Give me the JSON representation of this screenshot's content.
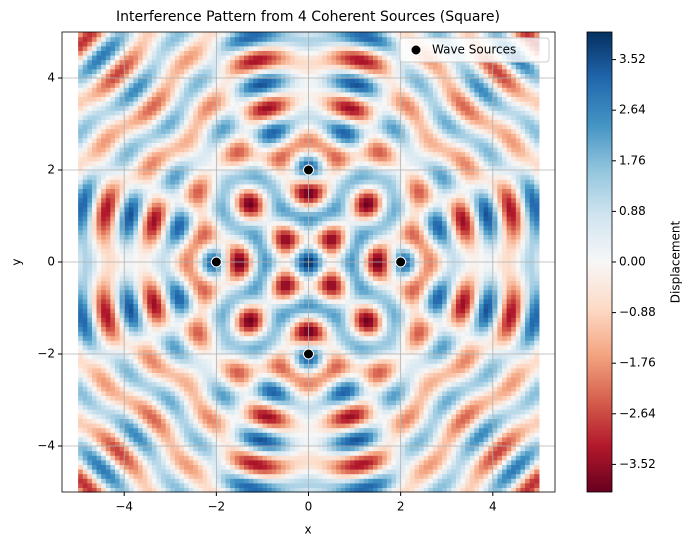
{
  "chart_data": {
    "type": "interference-map",
    "title": "Interference Pattern from 4 Coherent Sources (Square)",
    "x_label": "x",
    "y_label": "y",
    "xlim": [
      -5.35,
      5.35
    ],
    "ylim": [
      -5,
      5
    ],
    "xticks": [
      {
        "value": -4,
        "label": "−4"
      },
      {
        "value": -2,
        "label": "−2"
      },
      0,
      2,
      4
    ],
    "yticks": [
      {
        "value": -4,
        "label": "−4"
      },
      {
        "value": -2,
        "label": "−2"
      },
      0,
      2,
      4
    ],
    "grid": true,
    "series": [
      {
        "name": "Wave Sources",
        "color": "#000000",
        "x": [
          -2,
          2,
          0,
          0
        ],
        "y": [
          0,
          0,
          2,
          -2
        ]
      }
    ],
    "legend": "upper right",
    "colorbar": {
      "label": "Displacement",
      "colormap": "RdBu",
      "clim": [
        -4,
        4
      ],
      "ticks": [
        {
          "value": -3.52,
          "label": "−3.52"
        },
        {
          "value": -2.64,
          "label": "−2.64"
        },
        {
          "value": -1.76,
          "label": "−1.76"
        },
        {
          "value": -0.88,
          "label": "−0.88"
        },
        {
          "value": 0,
          "label": "0.00"
        },
        0.88,
        1.76,
        2.64,
        3.52
      ]
    }
  }
}
